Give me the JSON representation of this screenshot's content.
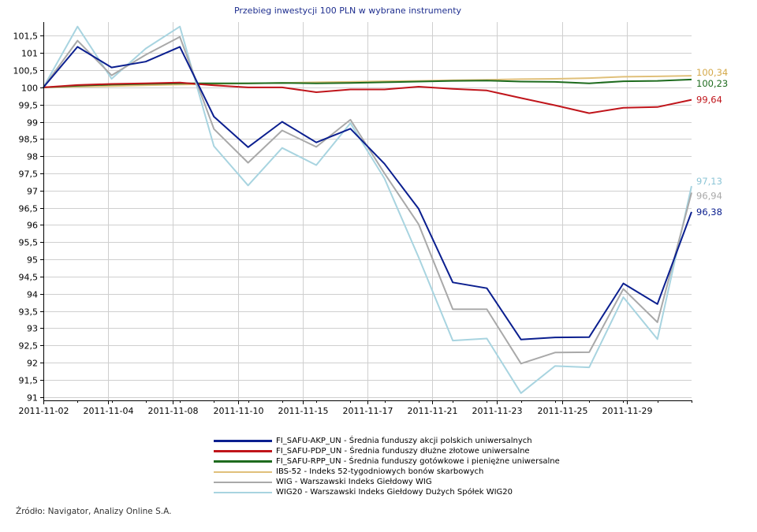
{
  "chart_data": {
    "type": "line",
    "title": "Przebieg inwestycji 100 PLN w wybrane instrumenty",
    "xlabel": "",
    "ylabel": "",
    "x_tick_labels": [
      "2011-11-02",
      "2011-11-04",
      "2011-11-08",
      "2011-11-10",
      "2011-11-15",
      "2011-11-17",
      "2011-11-21",
      "2011-11-23",
      "2011-11-25",
      "2011-11-29"
    ],
    "y_tick_labels": [
      "101,5",
      "101",
      "100,5",
      "100",
      "99,5",
      "99",
      "98,5",
      "98",
      "97,5",
      "97",
      "96,5",
      "96",
      "95,5",
      "95",
      "94,5",
      "94",
      "93,5",
      "93",
      "92,5",
      "92",
      "91,5",
      "91"
    ],
    "ylim": [
      90.9,
      101.9
    ],
    "grid": true,
    "legend_position": "bottom",
    "series": [
      {
        "name": "FI_SAFU-AKP_UN - Średnia funduszy akcji polskich uniwersalnych",
        "color": "#0b1f8f",
        "end_label": "96,38",
        "values": [
          100,
          101.18,
          100.58,
          100.75,
          101.18,
          99.15,
          98.26,
          99.0,
          98.4,
          98.8,
          97.78,
          96.47,
          94.33,
          94.16,
          92.67,
          92.73,
          92.74,
          94.3,
          93.7,
          96.38
        ]
      },
      {
        "name": "FI_SAFU-PDP_UN - Średnia funduszy dłużne złotowe uniwersalne",
        "color": "#c0151b",
        "end_label": "99,64",
        "values": [
          100,
          100.07,
          100.1,
          100.12,
          100.14,
          100.06,
          100.0,
          100.0,
          99.86,
          99.94,
          99.94,
          100.02,
          99.96,
          99.91,
          99.69,
          99.48,
          99.25,
          99.41,
          99.43,
          99.64
        ]
      },
      {
        "name": "FI_SAFU-RPP_UN - Średnia funduszy gotówkowe i pieniężne uniwersalne",
        "color": "#1e6b1e",
        "end_label": "100,23",
        "values": [
          100,
          100.05,
          100.08,
          100.1,
          100.12,
          100.12,
          100.12,
          100.13,
          100.12,
          100.13,
          100.15,
          100.17,
          100.19,
          100.2,
          100.17,
          100.16,
          100.12,
          100.18,
          100.19,
          100.23
        ]
      },
      {
        "name": "IBS-52 - Indeks 52-tygodniowych bonów skarbowych",
        "color": "#e0c07a",
        "end_label": "100,34",
        "values": [
          100,
          100.02,
          100.04,
          100.06,
          100.08,
          100.1,
          100.12,
          100.13,
          100.15,
          100.16,
          100.18,
          100.19,
          100.21,
          100.22,
          100.24,
          100.25,
          100.27,
          100.31,
          100.32,
          100.34
        ]
      },
      {
        "name": "WIG - Warszawski Indeks Giełdowy WIG",
        "color": "#a9a9a9",
        "end_label": "96,94",
        "values": [
          100,
          101.36,
          100.35,
          100.95,
          101.47,
          98.79,
          97.81,
          98.75,
          98.27,
          99.06,
          97.5,
          96.02,
          93.55,
          93.55,
          91.97,
          92.29,
          92.3,
          94.14,
          93.17,
          96.94
        ]
      },
      {
        "name": "WIG20 - Warszawski Indeks Giełdowy Dużych Spółek WIG20",
        "color": "#a8d4e0",
        "end_label": "97,13",
        "values": [
          100,
          101.77,
          100.25,
          101.13,
          101.77,
          98.29,
          97.15,
          98.24,
          97.74,
          98.96,
          97.35,
          95.06,
          92.64,
          92.7,
          91.11,
          91.9,
          91.86,
          93.9,
          92.68,
          97.13
        ]
      }
    ]
  },
  "footer": {
    "source": "Źródło: Navigator, Analizy Online S.A."
  }
}
